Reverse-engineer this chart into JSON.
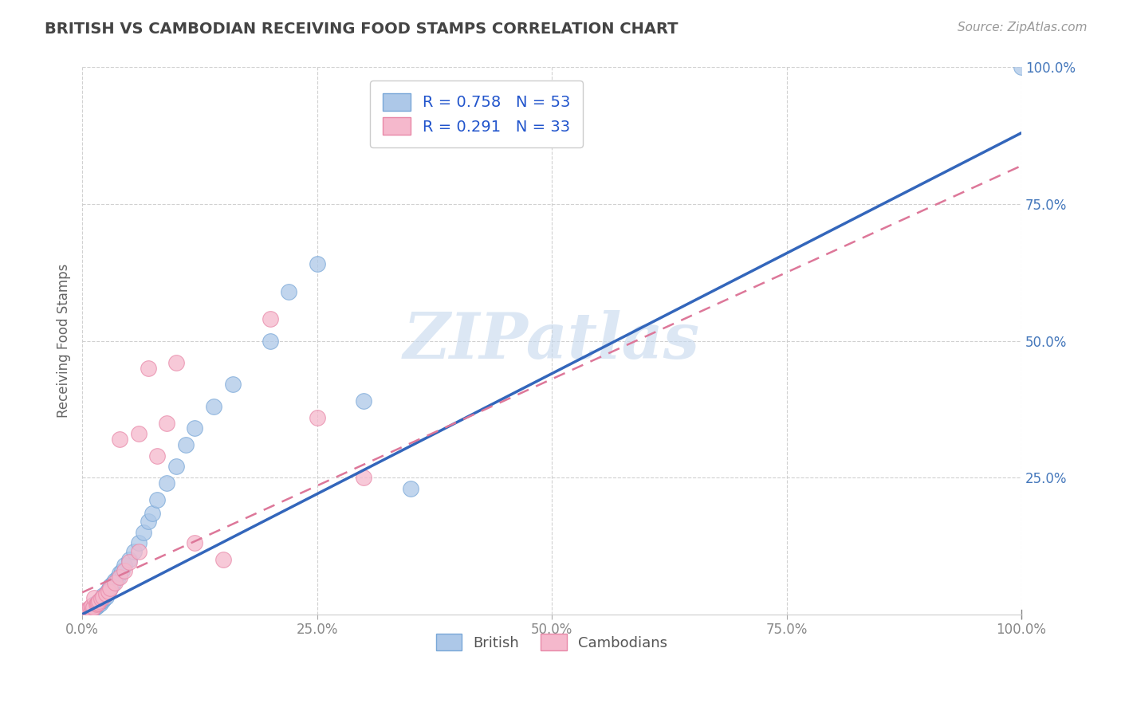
{
  "title": "BRITISH VS CAMBODIAN RECEIVING FOOD STAMPS CORRELATION CHART",
  "source": "Source: ZipAtlas.com",
  "ylabel": "Receiving Food Stamps",
  "watermark": "ZIPatlas",
  "british_R": 0.758,
  "british_N": 53,
  "cambodian_R": 0.291,
  "cambodian_N": 33,
  "british_color": "#adc8e8",
  "british_edge": "#7aa8d8",
  "cambodian_color": "#f5b8cc",
  "cambodian_edge": "#e888a8",
  "line_british_color": "#3366bb",
  "line_cambodian_color": "#dd7799",
  "title_color": "#444444",
  "axis_color": "#4477bb",
  "tick_color": "#888888",
  "grid_color": "#cccccc",
  "xlim": [
    0,
    1
  ],
  "ylim": [
    0,
    1
  ],
  "xticks": [
    0,
    0.25,
    0.5,
    0.75,
    1.0
  ],
  "yticks": [
    0.25,
    0.5,
    0.75,
    1.0
  ],
  "xticklabels": [
    "0.0%",
    "25.0%",
    "50.0%",
    "75.0%",
    "100.0%"
  ],
  "yticklabels": [
    "25.0%",
    "50.0%",
    "75.0%",
    "100.0%"
  ],
  "british_scatter_x": [
    0.005,
    0.007,
    0.008,
    0.01,
    0.01,
    0.012,
    0.012,
    0.013,
    0.015,
    0.015,
    0.016,
    0.017,
    0.018,
    0.018,
    0.019,
    0.02,
    0.02,
    0.021,
    0.022,
    0.022,
    0.023,
    0.025,
    0.025,
    0.026,
    0.028,
    0.03,
    0.03,
    0.032,
    0.033,
    0.035,
    0.038,
    0.04,
    0.042,
    0.045,
    0.05,
    0.055,
    0.06,
    0.065,
    0.07,
    0.075,
    0.08,
    0.09,
    0.1,
    0.11,
    0.12,
    0.14,
    0.16,
    0.2,
    0.22,
    0.25,
    0.3,
    0.35,
    1.0
  ],
  "british_scatter_y": [
    0.003,
    0.005,
    0.007,
    0.008,
    0.012,
    0.01,
    0.015,
    0.018,
    0.014,
    0.02,
    0.016,
    0.022,
    0.018,
    0.025,
    0.02,
    0.028,
    0.024,
    0.03,
    0.026,
    0.035,
    0.028,
    0.032,
    0.038,
    0.04,
    0.045,
    0.048,
    0.052,
    0.055,
    0.058,
    0.062,
    0.068,
    0.075,
    0.08,
    0.09,
    0.1,
    0.115,
    0.13,
    0.15,
    0.17,
    0.185,
    0.21,
    0.24,
    0.27,
    0.31,
    0.34,
    0.38,
    0.42,
    0.5,
    0.59,
    0.64,
    0.39,
    0.23,
    1.0
  ],
  "cambodian_scatter_x": [
    0.003,
    0.005,
    0.007,
    0.008,
    0.01,
    0.01,
    0.012,
    0.013,
    0.015,
    0.016,
    0.017,
    0.018,
    0.02,
    0.022,
    0.025,
    0.028,
    0.03,
    0.035,
    0.04,
    0.045,
    0.05,
    0.06,
    0.07,
    0.08,
    0.09,
    0.1,
    0.12,
    0.15,
    0.2,
    0.25,
    0.3,
    0.04,
    0.06
  ],
  "cambodian_scatter_y": [
    0.005,
    0.008,
    0.01,
    0.012,
    0.008,
    0.015,
    0.012,
    0.03,
    0.018,
    0.02,
    0.022,
    0.025,
    0.028,
    0.032,
    0.038,
    0.042,
    0.048,
    0.058,
    0.068,
    0.08,
    0.095,
    0.33,
    0.45,
    0.29,
    0.35,
    0.46,
    0.13,
    0.1,
    0.54,
    0.36,
    0.25,
    0.32,
    0.115
  ],
  "british_line_x0": 0.0,
  "british_line_y0": 0.0,
  "british_line_x1": 1.0,
  "british_line_y1": 0.88,
  "cambodian_line_x0": 0.0,
  "cambodian_line_y0": 0.04,
  "cambodian_line_x1": 1.0,
  "cambodian_line_y1": 0.82
}
